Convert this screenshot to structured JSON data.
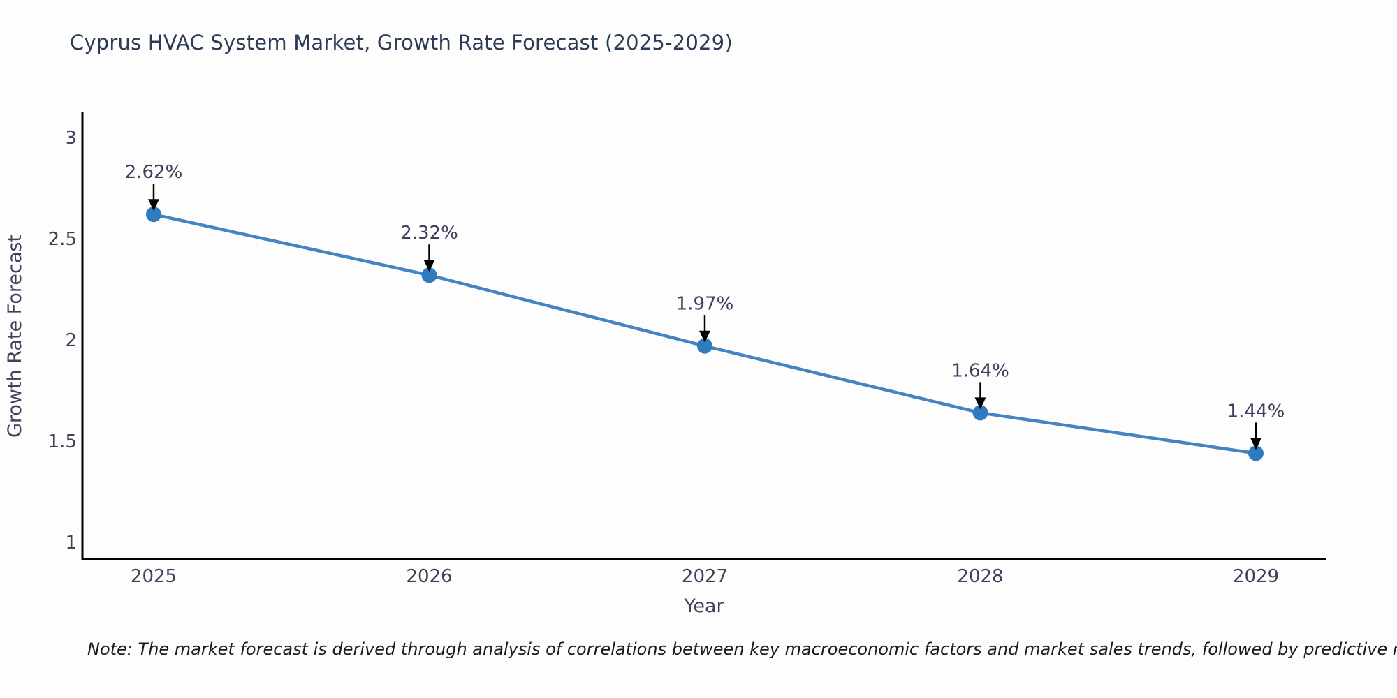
{
  "title": "Cyprus HVAC System Market, Growth Rate Forecast (2025-2029)",
  "note": "Note: The market forecast is derived through analysis of correlations between key macroeconomic factors and market sales trends, followed by predictive modeling to project future sales",
  "chart_data": {
    "type": "line",
    "title": "Cyprus HVAC System Market, Growth Rate Forecast (2025-2029)",
    "x": [
      2025,
      2026,
      2027,
      2028,
      2029
    ],
    "values": [
      2.62,
      2.32,
      1.97,
      1.64,
      1.44
    ],
    "point_labels": [
      "2.62%",
      "2.32%",
      "1.97%",
      "1.64%",
      "1.44%"
    ],
    "xlabel": "Year",
    "ylabel": "Growth Rate Forecast",
    "yticks": [
      1,
      1.5,
      2,
      2.5,
      3
    ],
    "ylim": [
      0.91,
      3.13
    ],
    "grid": "off",
    "legend": "none",
    "annotations": "value labels with downward arrows above each point",
    "colors": {
      "line": "#4384c1",
      "marker": "#2e7cbe",
      "arrow": "#000000",
      "axis": "#000000",
      "tick_label": "#3b4456",
      "point_label": "#3d3f5c",
      "title": "#2b3a55"
    }
  }
}
